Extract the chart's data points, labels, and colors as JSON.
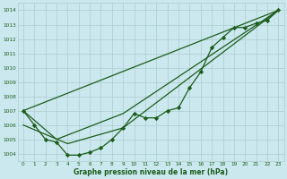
{
  "xlabel": "Graphe pression niveau de la mer (hPa)",
  "background_color": "#cce8ef",
  "grid_color": "#aacccc",
  "line_color": "#1a5c1a",
  "marker_color": "#1a5c1a",
  "xlim": [
    -0.5,
    23.5
  ],
  "ylim": [
    1003.5,
    1014.5
  ],
  "yticks": [
    1004,
    1005,
    1006,
    1007,
    1008,
    1009,
    1010,
    1011,
    1012,
    1013,
    1014
  ],
  "xticks": [
    0,
    1,
    2,
    3,
    4,
    5,
    6,
    7,
    8,
    9,
    10,
    11,
    12,
    13,
    14,
    15,
    16,
    17,
    18,
    19,
    20,
    21,
    22,
    23
  ],
  "series_main": {
    "x": [
      0,
      1,
      2,
      3,
      4,
      5,
      6,
      7,
      8,
      9,
      10,
      11,
      12,
      13,
      14,
      15,
      16,
      17,
      18,
      19,
      20,
      21,
      22,
      23
    ],
    "y": [
      1007.0,
      1006.0,
      1005.0,
      1004.8,
      1003.9,
      1003.9,
      1004.1,
      1004.4,
      1005.0,
      1005.8,
      1006.8,
      1006.5,
      1006.5,
      1007.0,
      1007.2,
      1008.6,
      1009.7,
      1011.4,
      1012.1,
      1012.8,
      1012.8,
      1013.1,
      1013.3,
      1014.0
    ]
  },
  "series_upper": {
    "x": [
      0,
      23
    ],
    "y": [
      1007.0,
      1014.0
    ]
  },
  "series_lower": {
    "x": [
      0,
      4,
      9,
      23
    ],
    "y": [
      1006.0,
      1004.7,
      1005.8,
      1014.0
    ]
  },
  "series_mid": {
    "x": [
      0,
      3,
      9,
      23
    ],
    "y": [
      1007.0,
      1005.0,
      1006.8,
      1014.0
    ]
  }
}
